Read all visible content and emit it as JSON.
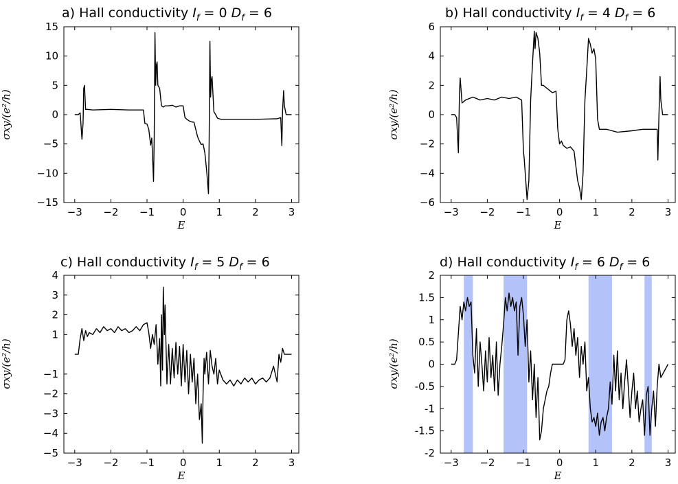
{
  "chart_data": [
    {
      "type": "line",
      "panel": "a)",
      "title": "Hall conductivity",
      "param1": {
        "sym": "I",
        "sub": "f",
        "val": "= 0"
      },
      "param2": {
        "sym": "D",
        "sub": "f",
        "val": "= 6"
      },
      "xlabel": "E",
      "ylabel": "σxy/(e²/h)",
      "xlim": [
        -3.3,
        3.2
      ],
      "ylim": [
        -15,
        15
      ],
      "xticks": [
        -3,
        -2,
        -1,
        0,
        1,
        2,
        3
      ],
      "xtick_labels": [
        "−3",
        "−2",
        "−1",
        "0",
        "1",
        "2",
        "3"
      ],
      "yticks": [
        15,
        10,
        5,
        0,
        -5,
        -10,
        -15
      ],
      "ytick_labels": [
        "15",
        "10",
        "5",
        "0",
        "−5",
        "−10",
        "−15"
      ],
      "bands": [],
      "x": [
        -3.0,
        -2.9,
        -2.85,
        -2.8,
        -2.77,
        -2.75,
        -2.73,
        -2.7,
        -2.65,
        -2.5,
        -2.0,
        -1.5,
        -1.1,
        -1.06,
        -1.0,
        -0.95,
        -0.9,
        -0.87,
        -0.85,
        -0.82,
        -0.8,
        -0.78,
        -0.76,
        -0.74,
        -0.72,
        -0.7,
        -0.65,
        -0.6,
        -0.55,
        -0.5,
        -0.4,
        -0.3,
        -0.2,
        -0.1,
        0.0,
        0.05,
        0.1,
        0.2,
        0.3,
        0.4,
        0.45,
        0.5,
        0.55,
        0.6,
        0.65,
        0.7,
        0.72,
        0.74,
        0.76,
        0.78,
        0.8,
        0.82,
        0.85,
        0.9,
        0.95,
        1.0,
        1.05,
        1.1,
        1.5,
        2.0,
        2.6,
        2.7,
        2.73,
        2.75,
        2.78,
        2.8,
        2.85,
        3.0
      ],
      "y": [
        0,
        0,
        0.3,
        -4.2,
        -1.5,
        4.5,
        5.0,
        0.9,
        0.9,
        0.8,
        0.9,
        0.8,
        0.8,
        -1.5,
        -1.6,
        -2.5,
        -5.2,
        -4.0,
        -6.5,
        -11.4,
        -4.0,
        14.0,
        5.0,
        8.5,
        9.0,
        5.0,
        4.5,
        1.5,
        1.3,
        1.5,
        1.5,
        1.6,
        1.3,
        1.5,
        1.5,
        -0.5,
        -0.8,
        -1.2,
        -1.3,
        -3.8,
        -4.5,
        -5.1,
        -5.0,
        -6.5,
        -9.5,
        -13.5,
        -4.0,
        12.5,
        3.0,
        6.0,
        6.5,
        4.0,
        0.5,
        0.0,
        -0.6,
        -0.7,
        -0.8,
        -0.8,
        -0.8,
        -0.8,
        -0.7,
        -0.5,
        -5.3,
        0.5,
        4.1,
        1.5,
        0,
        0
      ]
    },
    {
      "type": "line",
      "panel": "b)",
      "title": "Hall conductivity",
      "param1": {
        "sym": "I",
        "sub": "f",
        "val": "= 4"
      },
      "param2": {
        "sym": "D",
        "sub": "f",
        "val": "= 6"
      },
      "xlabel": "E",
      "ylabel": "σxy/(e²/h)",
      "xlim": [
        -3.3,
        3.2
      ],
      "ylim": [
        -6,
        6
      ],
      "xticks": [
        -3,
        -2,
        -1,
        0,
        1,
        2,
        3
      ],
      "xtick_labels": [
        "−3",
        "−2",
        "−1",
        "0",
        "1",
        "2",
        "3"
      ],
      "yticks": [
        6,
        4,
        2,
        0,
        -2,
        -4,
        -6
      ],
      "ytick_labels": [
        "6",
        "4",
        "2",
        "0",
        "−2",
        "−4",
        "−6"
      ],
      "bands": [],
      "x": [
        -3.0,
        -2.9,
        -2.85,
        -2.8,
        -2.77,
        -2.75,
        -2.7,
        -2.6,
        -2.4,
        -2.2,
        -2.0,
        -1.8,
        -1.6,
        -1.4,
        -1.2,
        -1.05,
        -1.0,
        -0.98,
        -0.95,
        -0.9,
        -0.85,
        -0.8,
        -0.75,
        -0.7,
        -0.68,
        -0.65,
        -0.6,
        -0.55,
        -0.5,
        -0.45,
        -0.4,
        -0.3,
        -0.2,
        -0.1,
        -0.05,
        0.0,
        0.05,
        0.1,
        0.2,
        0.3,
        0.4,
        0.5,
        0.55,
        0.6,
        0.65,
        0.7,
        0.75,
        0.8,
        0.85,
        0.9,
        0.95,
        1.0,
        1.05,
        1.1,
        1.3,
        1.6,
        2.0,
        2.3,
        2.6,
        2.7,
        2.72,
        2.75,
        2.78,
        2.8,
        2.85,
        3.0
      ],
      "y": [
        0,
        0,
        -0.2,
        -2.6,
        1.5,
        2.5,
        0.8,
        1.0,
        1.2,
        1.0,
        1.1,
        1.0,
        1.2,
        1.1,
        1.2,
        1.0,
        -2.5,
        -3.0,
        -4.0,
        -5.8,
        -4.5,
        1.0,
        3.5,
        5.7,
        4.5,
        5.6,
        5.2,
        4.2,
        2.0,
        2.0,
        1.9,
        1.7,
        1.5,
        1.6,
        -1.0,
        -2.0,
        -1.8,
        -2.1,
        -2.3,
        -2.2,
        -2.5,
        -4.5,
        -5.0,
        -5.8,
        -4.0,
        1.0,
        3.0,
        5.2,
        4.8,
        4.2,
        4.5,
        3.8,
        -0.3,
        -1.0,
        -1.0,
        -1.2,
        -1.1,
        -1.0,
        -1.0,
        -1.0,
        -3.1,
        0.0,
        2.6,
        1.0,
        0.0,
        0.0
      ]
    },
    {
      "type": "line",
      "panel": "c)",
      "title": "Hall conductivity",
      "param1": {
        "sym": "I",
        "sub": "f",
        "val": "= 5"
      },
      "param2": {
        "sym": "D",
        "sub": "f",
        "val": "= 6"
      },
      "xlabel": "E",
      "ylabel": "σxy/(e²/h)",
      "xlim": [
        -3.3,
        3.2
      ],
      "ylim": [
        -5,
        4
      ],
      "xticks": [
        -3,
        -2,
        -1,
        0,
        1,
        2,
        3
      ],
      "xtick_labels": [
        "−3",
        "−2",
        "−1",
        "0",
        "1",
        "2",
        "3"
      ],
      "yticks": [
        4,
        3,
        2,
        1,
        -1,
        -2,
        -3,
        -4,
        -5
      ],
      "ytick_labels": [
        "4",
        "3",
        "2",
        "1",
        "−1",
        "−2",
        "−3",
        "−4",
        "−5"
      ],
      "bands": [],
      "x": [
        -3.0,
        -2.9,
        -2.85,
        -2.8,
        -2.75,
        -2.7,
        -2.65,
        -2.6,
        -2.5,
        -2.4,
        -2.3,
        -2.2,
        -2.1,
        -2.0,
        -1.9,
        -1.8,
        -1.7,
        -1.6,
        -1.5,
        -1.4,
        -1.3,
        -1.2,
        -1.1,
        -1.0,
        -0.95,
        -0.9,
        -0.85,
        -0.8,
        -0.75,
        -0.7,
        -0.65,
        -0.62,
        -0.6,
        -0.57,
        -0.55,
        -0.52,
        -0.5,
        -0.45,
        -0.4,
        -0.35,
        -0.3,
        -0.25,
        -0.2,
        -0.15,
        -0.1,
        -0.05,
        0.0,
        0.05,
        0.1,
        0.15,
        0.2,
        0.25,
        0.3,
        0.35,
        0.4,
        0.45,
        0.5,
        0.53,
        0.55,
        0.58,
        0.6,
        0.65,
        0.7,
        0.75,
        0.8,
        0.85,
        0.9,
        0.95,
        1.0,
        1.1,
        1.2,
        1.3,
        1.4,
        1.5,
        1.6,
        1.7,
        1.8,
        1.9,
        2.0,
        2.1,
        2.2,
        2.3,
        2.4,
        2.5,
        2.6,
        2.65,
        2.7,
        2.75,
        2.8,
        3.0
      ],
      "y": [
        0,
        0,
        0.8,
        1.3,
        0.7,
        1.2,
        0.9,
        1.1,
        1.0,
        1.3,
        1.1,
        1.4,
        1.2,
        1.3,
        1.1,
        1.4,
        1.2,
        1.3,
        1.1,
        1.2,
        1.4,
        1.2,
        1.5,
        1.6,
        1.1,
        0.3,
        1.0,
        0.5,
        1.5,
        -0.5,
        0.8,
        -1.6,
        2.0,
        -0.8,
        3.4,
        1.0,
        2.5,
        -1.5,
        0.5,
        -1.5,
        0.3,
        -1.2,
        0.6,
        -1.0,
        0.4,
        -1.6,
        0.5,
        -1.4,
        0.2,
        -2.0,
        0.0,
        -1.4,
        -0.2,
        -2.5,
        -1.0,
        -3.3,
        -2.5,
        -4.5,
        -2.0,
        -0.2,
        -1.0,
        0.1,
        -1.5,
        0.2,
        -0.6,
        -1.0,
        -0.2,
        -1.5,
        -0.8,
        -1.3,
        -1.5,
        -1.3,
        -1.6,
        -1.3,
        -1.5,
        -1.2,
        -1.4,
        -1.2,
        -1.5,
        -1.3,
        -1.2,
        -1.4,
        -1.2,
        -0.6,
        -1.4,
        0.0,
        -0.4,
        0.3,
        0.0,
        0.0
      ]
    },
    {
      "type": "line",
      "panel": "d)",
      "title": "Hall conductivity",
      "param1": {
        "sym": "I",
        "sub": "f",
        "val": "= 6"
      },
      "param2": {
        "sym": "D",
        "sub": "f",
        "val": "= 6"
      },
      "xlabel": "E",
      "ylabel": "σxy/(e²/h)",
      "xlim": [
        -3.3,
        3.2
      ],
      "ylim": [
        -2,
        2
      ],
      "xticks": [
        -3,
        -2,
        -1,
        0,
        1,
        2,
        3
      ],
      "xtick_labels": [
        "−3",
        "−2",
        "−1",
        "0",
        "1",
        "2",
        "3"
      ],
      "yticks": [
        2,
        1.5,
        1,
        0.5,
        0,
        -0.5,
        -1,
        -1.5,
        -2
      ],
      "ytick_labels": [
        "2",
        "1.5",
        "1",
        "0.5",
        "0",
        "-0.5",
        "-1",
        "-1.5",
        "-2"
      ],
      "bands": [
        [
          -2.65,
          -2.4
        ],
        [
          -1.55,
          -0.9
        ],
        [
          0.8,
          1.45
        ],
        [
          2.35,
          2.55
        ]
      ],
      "x": [
        -3.0,
        -2.9,
        -2.85,
        -2.8,
        -2.75,
        -2.7,
        -2.65,
        -2.6,
        -2.55,
        -2.5,
        -2.45,
        -2.4,
        -2.35,
        -2.3,
        -2.25,
        -2.2,
        -2.15,
        -2.1,
        -2.05,
        -2.0,
        -1.95,
        -1.9,
        -1.85,
        -1.8,
        -1.75,
        -1.7,
        -1.65,
        -1.6,
        -1.55,
        -1.5,
        -1.45,
        -1.4,
        -1.35,
        -1.3,
        -1.25,
        -1.2,
        -1.15,
        -1.1,
        -1.05,
        -1.0,
        -0.95,
        -0.9,
        -0.85,
        -0.8,
        -0.75,
        -0.7,
        -0.65,
        -0.6,
        -0.55,
        -0.5,
        -0.45,
        -0.4,
        -0.35,
        -0.3,
        -0.25,
        -0.2,
        0.1,
        0.15,
        0.2,
        0.25,
        0.3,
        0.35,
        0.4,
        0.45,
        0.5,
        0.55,
        0.6,
        0.65,
        0.7,
        0.75,
        0.8,
        0.85,
        0.9,
        0.95,
        1.0,
        1.05,
        1.1,
        1.15,
        1.2,
        1.25,
        1.3,
        1.35,
        1.4,
        1.45,
        1.5,
        1.55,
        1.6,
        1.65,
        1.7,
        1.75,
        1.8,
        1.85,
        1.9,
        1.95,
        2.0,
        2.05,
        2.1,
        2.15,
        2.2,
        2.25,
        2.3,
        2.35,
        2.4,
        2.45,
        2.5,
        2.55,
        2.6,
        2.65,
        2.7,
        2.75,
        2.8,
        3.0
      ],
      "y": [
        0,
        0,
        0.1,
        0.7,
        1.3,
        1.0,
        1.4,
        1.2,
        1.5,
        1.3,
        1.4,
        0.2,
        -0.2,
        0.8,
        -0.5,
        0.5,
        0.0,
        -0.6,
        0.3,
        -0.4,
        0.6,
        -0.3,
        0.2,
        -0.6,
        0.5,
        -0.7,
        0.0,
        0.4,
        0.9,
        1.5,
        1.2,
        1.6,
        1.3,
        1.5,
        1.2,
        1.4,
        0.2,
        1.3,
        1.5,
        1.1,
        0.4,
        1.0,
        -0.4,
        0.3,
        -0.8,
        0.0,
        -1.2,
        -0.3,
        -1.7,
        -1.5,
        -1.0,
        -0.8,
        -0.6,
        -0.5,
        -0.2,
        0.0,
        0.0,
        0.1,
        1.0,
        1.2,
        0.9,
        0.4,
        0.8,
        0.2,
        0.6,
        -0.3,
        0.4,
        0.0,
        0.5,
        -0.6,
        -0.3,
        -1.0,
        -1.3,
        -1.2,
        -1.4,
        -1.1,
        -1.6,
        -1.3,
        -1.2,
        -1.5,
        -1.2,
        -1.0,
        -0.4,
        -0.9,
        0.2,
        -0.6,
        0.3,
        -0.8,
        -0.2,
        -1.0,
        -0.4,
        0.1,
        -0.5,
        -1.2,
        -0.6,
        -0.2,
        -1.0,
        -0.6,
        -1.3,
        -1.0,
        -0.8,
        -1.6,
        -0.7,
        -0.5,
        -1.6,
        -1.0,
        -0.6,
        -1.4,
        -0.5,
        0.0,
        -0.3,
        0.0
      ]
    }
  ]
}
